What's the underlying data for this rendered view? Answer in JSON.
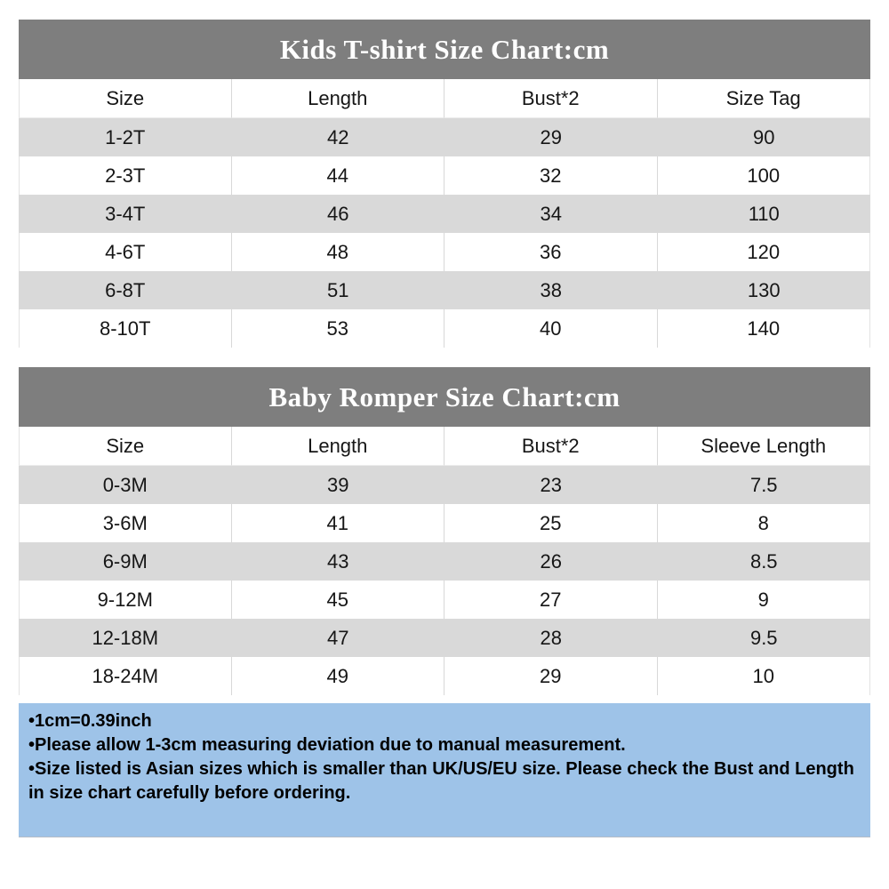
{
  "colors": {
    "title_band_bg": "#7e7e7e",
    "title_text": "#ffffff",
    "row_alt_bg": "#d9d9d9",
    "footer_bg": "#9ec3e8",
    "body_text": "#161616"
  },
  "tables": [
    {
      "title": "Kids T-shirt Size Chart:cm",
      "columns": [
        "Size",
        "Length",
        "Bust*2",
        "Size Tag"
      ],
      "rows": [
        [
          "1-2T",
          "42",
          "29",
          "90"
        ],
        [
          "2-3T",
          "44",
          "32",
          "100"
        ],
        [
          "3-4T",
          "46",
          "34",
          "110"
        ],
        [
          "4-6T",
          "48",
          "36",
          "120"
        ],
        [
          "6-8T",
          "51",
          "38",
          "130"
        ],
        [
          "8-10T",
          "53",
          "40",
          "140"
        ]
      ]
    },
    {
      "title": "Baby Romper Size Chart:cm",
      "columns": [
        "Size",
        "Length",
        "Bust*2",
        "Sleeve Length"
      ],
      "rows": [
        [
          "0-3M",
          "39",
          "23",
          "7.5"
        ],
        [
          "3-6M",
          "41",
          "25",
          "8"
        ],
        [
          "6-9M",
          "43",
          "26",
          "8.5"
        ],
        [
          "9-12M",
          "45",
          "27",
          "9"
        ],
        [
          "12-18M",
          "47",
          "28",
          "9.5"
        ],
        [
          "18-24M",
          "49",
          "29",
          "10"
        ]
      ]
    }
  ],
  "footer": {
    "notes": [
      "•1cm=0.39inch",
      "•Please allow 1-3cm measuring deviation due to manual measurement.",
      "•Size listed is Asian sizes which is smaller than UK/US/EU size. Please check the Bust and Length in size chart carefully before ordering."
    ]
  }
}
